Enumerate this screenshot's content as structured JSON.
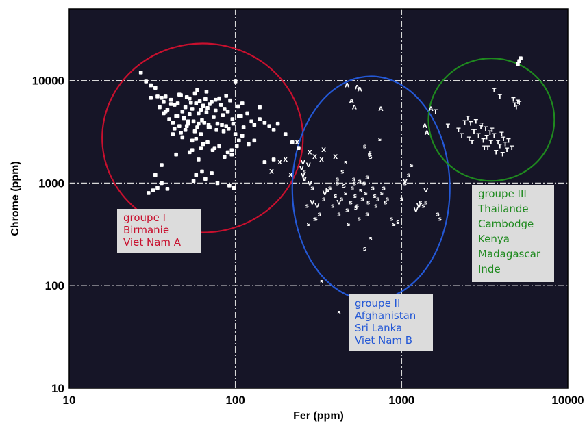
{
  "chart_data": {
    "type": "scatter",
    "title": "",
    "xlabel": "Fer (ppm)",
    "ylabel": "Chrome (ppm)",
    "xscale": "log",
    "yscale": "log",
    "xlim": [
      10,
      10000
    ],
    "ylim": [
      10,
      50000
    ],
    "xticks": [
      10,
      100,
      1000,
      10000
    ],
    "xtick_labels": [
      "10",
      "100",
      "1000",
      "10000"
    ],
    "yticks": [
      10,
      100,
      1000,
      10000
    ],
    "ytick_labels": [
      "10",
      "100",
      "1000",
      "10000"
    ],
    "grid": true,
    "colors": {
      "plot_background": "#161527",
      "marker": "#ffffff",
      "grid": "#d8d8d8",
      "groupe_I": "#c8102e",
      "groupe_II": "#2458d6",
      "groupe_III": "#1f8a1f",
      "label_box": "#dcdcdc"
    },
    "groups": [
      {
        "id": "groupe_I",
        "lines": [
          "groupe I",
          "Birmanie",
          "Viet Nam A"
        ],
        "color": "#c8102e",
        "ellipse": {
          "cx": 70,
          "cy": 2600,
          "x_min": 15.8,
          "x_max": 255,
          "y_min": 330,
          "y_max": 23000
        }
      },
      {
        "id": "groupe_II",
        "lines": [
          "groupe II",
          "Afghanistan",
          "Sri Lanka",
          "Viet Nam B"
        ],
        "color": "#2458d6",
        "ellipse": {
          "cx": 650,
          "cy": 850,
          "x_min": 220,
          "x_max": 1950,
          "y_min": 72,
          "y_max": 11000
        }
      },
      {
        "id": "groupe_III",
        "lines": [
          "groupe III",
          "Thailande",
          "Cambodge",
          "Kenya",
          "Madagascar",
          "Inde"
        ],
        "color": "#1f8a1f",
        "ellipse": {
          "cx": 3400,
          "cy": 4200,
          "x_min": 1450,
          "x_max": 8300,
          "y_min": 1050,
          "y_max": 16500
        }
      }
    ],
    "series": [
      {
        "marker": "square",
        "x": [
          27,
          29,
          31,
          33,
          35,
          36,
          37,
          38,
          39,
          40,
          41,
          42,
          43,
          44,
          45,
          46,
          47,
          48,
          49,
          50,
          51,
          52,
          53,
          54,
          55,
          56,
          57,
          58,
          59,
          60,
          61,
          62,
          63,
          64,
          65,
          66,
          67,
          68,
          69,
          70,
          72,
          74,
          76,
          78,
          80,
          82,
          84,
          86,
          88,
          90,
          93,
          96,
          100,
          104,
          108,
          112,
          118,
          125,
          130,
          140,
          150,
          160,
          170,
          180,
          200,
          220,
          240,
          38,
          45,
          52,
          60,
          70,
          85,
          100,
          48,
          55,
          64,
          75,
          90,
          105,
          120,
          42,
          50,
          58,
          68,
          80,
          95,
          110,
          130,
          44,
          53,
          62,
          73,
          86,
          102,
          33,
          36,
          56,
          66,
          78,
          92,
          34,
          39,
          58,
          63,
          72,
          98,
          30,
          32,
          36,
          55,
          60,
          95,
          150,
          170,
          31,
          34,
          37,
          41,
          46,
          53,
          59,
          67,
          76,
          88,
          110,
          140,
          43,
          47,
          51,
          57,
          62,
          69,
          77,
          83,
          91,
          97,
          105
        ],
        "y": [
          12000,
          9800,
          9000,
          8500,
          5500,
          6800,
          4800,
          7000,
          5200,
          4200,
          6500,
          3900,
          5800,
          4500,
          6000,
          3600,
          7200,
          5000,
          4300,
          5500,
          6900,
          3800,
          4700,
          6100,
          5300,
          4000,
          7500,
          6000,
          3500,
          4800,
          6300,
          5200,
          4100,
          5700,
          3900,
          6600,
          4900,
          5400,
          3700,
          5900,
          6200,
          4400,
          5100,
          3800,
          6700,
          5800,
          4600,
          5300,
          3600,
          5000,
          6400,
          4200,
          9800,
          5600,
          4500,
          3500,
          4800,
          4000,
          3700,
          4200,
          3900,
          3600,
          3300,
          3800,
          3000,
          2500,
          2200,
          5000,
          4500,
          4000,
          3800,
          3500,
          3200,
          3000,
          2800,
          2600,
          2400,
          2200,
          2000,
          2600,
          2400,
          3000,
          3300,
          2700,
          2500,
          2300,
          2100,
          2900,
          2600,
          1900,
          2000,
          2200,
          2100,
          1800,
          2300,
          1200,
          1000,
          1050,
          1100,
          1000,
          950,
          900,
          880,
          1200,
          1300,
          1250,
          900,
          800,
          850,
          1500,
          2100,
          1700,
          1900,
          1600,
          1700,
          6800,
          7000,
          6200,
          5900,
          7300,
          6700,
          8100,
          7800,
          6500,
          7100,
          6000,
          5500,
          3400,
          3100,
          3600,
          3200,
          3000,
          3500,
          3300,
          3700,
          3400,
          3800,
          4500
        ]
      },
      {
        "marker": "A",
        "x": [
          470,
          540,
          500,
          520,
          560,
          750,
          1380,
          1420,
          1500
        ],
        "y": [
          9000,
          8600,
          6300,
          5500,
          8200,
          5300,
          3600,
          3100,
          5300
        ]
      },
      {
        "marker": "X",
        "x": [
          185,
          200,
          165,
          215,
          280,
          300,
          330,
          340,
          400,
          235
        ],
        "y": [
          1600,
          1700,
          1300,
          1200,
          2000,
          1800,
          1700,
          2100,
          1800,
          2500
        ]
      },
      {
        "marker": "V",
        "x": [
          250,
          255,
          255,
          260,
          275,
          280,
          290,
          310,
          345,
          360,
          420,
          1050,
          1220,
          1270,
          1400
        ],
        "y": [
          1400,
          1600,
          1200,
          1100,
          1500,
          1000,
          650,
          600,
          800,
          850,
          650,
          1050,
          550,
          600,
          850
        ]
      },
      {
        "marker": "S",
        "x": [
          260,
          270,
          275,
          290,
          305,
          320,
          340,
          355,
          370,
          385,
          400,
          410,
          420,
          435,
          450,
          460,
          470,
          480,
          495,
          505,
          515,
          525,
          540,
          555,
          565,
          580,
          595,
          610,
          620,
          630,
          645,
          650,
          670,
          690,
          700,
          720,
          740,
          760,
          780,
          800,
          820,
          870,
          900,
          950,
          1000,
          1050,
          1100,
          1150,
          1300,
          1350,
          1400,
          1650,
          1700,
          600,
          640,
          460,
          440,
          410,
          560,
          620,
          520,
          330,
          420,
          260,
          600,
          650,
          530,
          300
        ],
        "y": [
          1100,
          600,
          400,
          900,
          450,
          500,
          700,
          850,
          900,
          600,
          750,
          1000,
          500,
          700,
          950,
          800,
          550,
          400,
          650,
          900,
          1100,
          750,
          600,
          450,
          850,
          700,
          1000,
          800,
          500,
          650,
          2000,
          1800,
          900,
          750,
          600,
          700,
          2700,
          800,
          900,
          650,
          700,
          450,
          400,
          420,
          700,
          1000,
          1200,
          1500,
          650,
          600,
          650,
          500,
          450,
          2300,
          1900,
          1600,
          1300,
          1100,
          1050,
          1150,
          1000,
          110,
          55,
          1300,
          230,
          290,
          580,
          450
        ]
      },
      {
        "marker": "T",
        "x": [
          1600,
          1900,
          2400,
          2500,
          2600,
          2700,
          2800,
          2900,
          3000,
          3100,
          3200,
          3300,
          3400,
          3500,
          3600,
          3800,
          3900,
          4000,
          4100,
          4200,
          4400,
          4600,
          4800,
          5000,
          2200,
          2300,
          2550,
          2750,
          3050,
          3250,
          3450,
          3700,
          4050,
          4300,
          4700,
          4900,
          5100,
          3600,
          3900,
          2650,
          3150
        ],
        "y": [
          5000,
          3600,
          3900,
          4300,
          3800,
          3200,
          4000,
          2900,
          3500,
          2600,
          3400,
          2200,
          3100,
          3300,
          2900,
          2500,
          2300,
          3000,
          2700,
          2400,
          2600,
          2200,
          5800,
          6200,
          3300,
          2900,
          2700,
          3200,
          3700,
          2800,
          2500,
          2000,
          1900,
          2100,
          6500,
          5500,
          6000,
          8000,
          7000,
          2500,
          2200
        ]
      },
      {
        "marker": "square",
        "x": [
          5000,
          5100,
          5200
        ],
        "y": [
          14500,
          15500,
          16500
        ]
      }
    ]
  }
}
